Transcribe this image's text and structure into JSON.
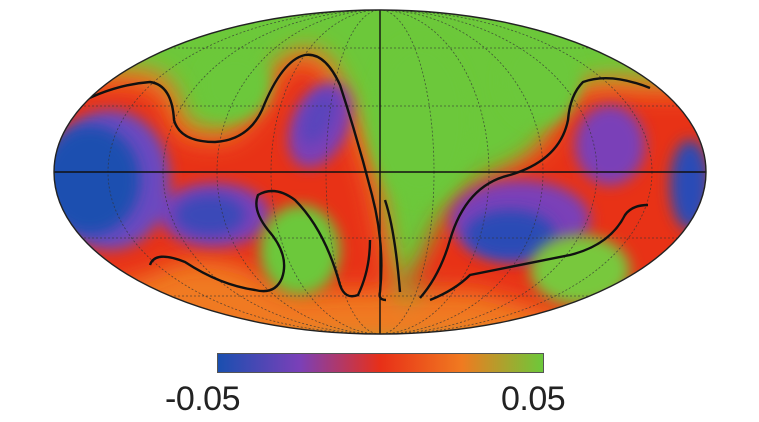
{
  "chart_data": {
    "type": "heatmap",
    "projection": "mollweide",
    "title": "",
    "colorbar": {
      "min_label": "-0.05",
      "max_label": "0.05",
      "range": [
        -0.05,
        0.05
      ],
      "colors": [
        "#1a4fb0",
        "#7a40b8",
        "#e83018",
        "#f07a20",
        "#6cc83a"
      ],
      "zero_contour": true
    },
    "graticule": true,
    "colors": {
      "high": "#6cc83a",
      "mid": "#e83018",
      "low": "#1a4fb0",
      "contour": "#111111"
    }
  }
}
